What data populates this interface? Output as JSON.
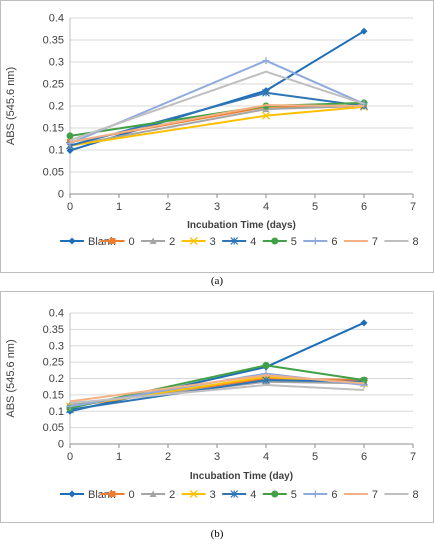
{
  "panel_labels": [
    "(a)",
    "(b)"
  ],
  "chart_data": [
    {
      "type": "line",
      "xlabel": "Incubation Time (days)",
      "ylabel": "ABS (545.6 nm)",
      "xlim": [
        0,
        7
      ],
      "ylim": [
        0,
        0.4
      ],
      "xticks": [
        0,
        1,
        2,
        3,
        4,
        5,
        6,
        7
      ],
      "yticks": [
        0,
        0.05,
        0.1,
        0.15,
        0.2,
        0.25,
        0.3,
        0.35,
        0.4
      ],
      "grid": "horizontal",
      "legend_position": "bottom",
      "x": [
        0,
        4,
        6
      ],
      "series": [
        {
          "name": "Blank",
          "color": "#1f6eb8",
          "marker": "diamond",
          "values": [
            0.099,
            0.235,
            0.37
          ]
        },
        {
          "name": "0",
          "color": "#ed7d31",
          "marker": "square",
          "values": [
            0.118,
            0.198,
            0.2
          ]
        },
        {
          "name": "2",
          "color": "#a5a5a5",
          "marker": "triangle",
          "values": [
            0.11,
            0.193,
            0.2
          ]
        },
        {
          "name": "3",
          "color": "#ffc000",
          "marker": "x",
          "values": [
            0.11,
            0.178,
            0.198
          ]
        },
        {
          "name": "4",
          "color": "#2e75b6",
          "marker": "star",
          "values": [
            0.11,
            0.23,
            0.2
          ]
        },
        {
          "name": "5",
          "color": "#43a047",
          "marker": "circle",
          "values": [
            0.132,
            0.2,
            0.207
          ]
        },
        {
          "name": "6",
          "color": "#8faadc",
          "marker": "plus",
          "values": [
            0.115,
            0.303,
            0.205
          ]
        },
        {
          "name": "7",
          "color": "#f4b183",
          "marker": "none",
          "values": [
            0.118,
            0.202,
            0.2
          ]
        },
        {
          "name": "8",
          "color": "#bfbfbf",
          "marker": "none",
          "values": [
            0.122,
            0.278,
            0.205
          ]
        }
      ]
    },
    {
      "type": "line",
      "xlabel": "Incubation Time (day)",
      "ylabel": "ABS (545.6 nm)",
      "xlim": [
        0,
        7
      ],
      "ylim": [
        0,
        0.4
      ],
      "xticks": [
        0,
        1,
        2,
        3,
        4,
        5,
        6,
        7
      ],
      "yticks": [
        0,
        0.05,
        0.1,
        0.15,
        0.2,
        0.25,
        0.3,
        0.35,
        0.4
      ],
      "grid": "horizontal",
      "legend_position": "bottom",
      "x": [
        0,
        4,
        6
      ],
      "series": [
        {
          "name": "Blank",
          "color": "#1f6eb8",
          "marker": "diamond",
          "values": [
            0.1,
            0.235,
            0.37
          ]
        },
        {
          "name": "0",
          "color": "#ed7d31",
          "marker": "square",
          "values": [
            0.115,
            0.2,
            0.195
          ]
        },
        {
          "name": "2",
          "color": "#a5a5a5",
          "marker": "triangle",
          "values": [
            0.12,
            0.19,
            0.185
          ]
        },
        {
          "name": "3",
          "color": "#ffc000",
          "marker": "x",
          "values": [
            0.115,
            0.205,
            0.185
          ]
        },
        {
          "name": "4",
          "color": "#2e75b6",
          "marker": "star",
          "values": [
            0.105,
            0.195,
            0.19
          ]
        },
        {
          "name": "5",
          "color": "#43a047",
          "marker": "circle",
          "values": [
            0.11,
            0.24,
            0.195
          ]
        },
        {
          "name": "6",
          "color": "#8faadc",
          "marker": "plus",
          "values": [
            0.115,
            0.215,
            0.18
          ]
        },
        {
          "name": "7",
          "color": "#f4b183",
          "marker": "none",
          "values": [
            0.13,
            0.21,
            0.185
          ]
        },
        {
          "name": "8",
          "color": "#bfbfbf",
          "marker": "none",
          "values": [
            0.125,
            0.18,
            0.165
          ]
        }
      ]
    }
  ]
}
